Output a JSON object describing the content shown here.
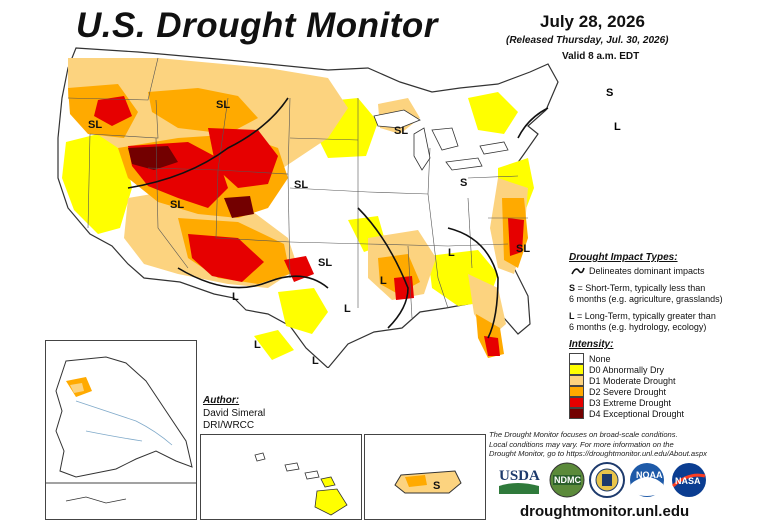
{
  "title": "U.S. Drought Monitor",
  "date": "July 28, 2026",
  "released": "(Released Thursday, Jul. 30, 2026)",
  "valid": "Valid 8 a.m. EDT",
  "impact_legend": {
    "heading": "Drought Impact Types:",
    "line_desc": "Delineates dominant impacts",
    "s_key": "S",
    "s_desc_1": " = Short-Term, typically less than",
    "s_desc_2": "6 months (e.g. agriculture, grasslands)",
    "l_key": "L",
    "l_desc_1": " = Long-Term, typically greater than",
    "l_desc_2": "6 months (e.g. hydrology, ecology)"
  },
  "intensity_legend": {
    "heading": "Intensity:",
    "categories": [
      {
        "label": "None",
        "color": "#ffffff"
      },
      {
        "label": "D0 Abnormally Dry",
        "color": "#ffff00"
      },
      {
        "label": "D1 Moderate Drought",
        "color": "#fcd37f"
      },
      {
        "label": "D2 Severe Drought",
        "color": "#ffaa00"
      },
      {
        "label": "D3 Extreme Drought",
        "color": "#e60000"
      },
      {
        "label": "D4 Exceptional Drought",
        "color": "#730000"
      }
    ]
  },
  "impact_labels": {
    "sl": "SL",
    "s": "S",
    "l": "L"
  },
  "author": {
    "heading": "Author:",
    "name": "David Simeral",
    "org": "DRI/WRCC"
  },
  "note": {
    "line1": "The Drought Monitor focuses on broad-scale conditions.",
    "line2": "Local conditions may vary. For more information on the",
    "line3": "Drought Monitor, go to https://droughtmonitor.unl.edu/About.aspx"
  },
  "logos": {
    "usda": "USDA",
    "ndmc": "NDMC",
    "noaa": "NOAA",
    "nasa": "NASA"
  },
  "website": "droughtmonitor.unl.edu"
}
